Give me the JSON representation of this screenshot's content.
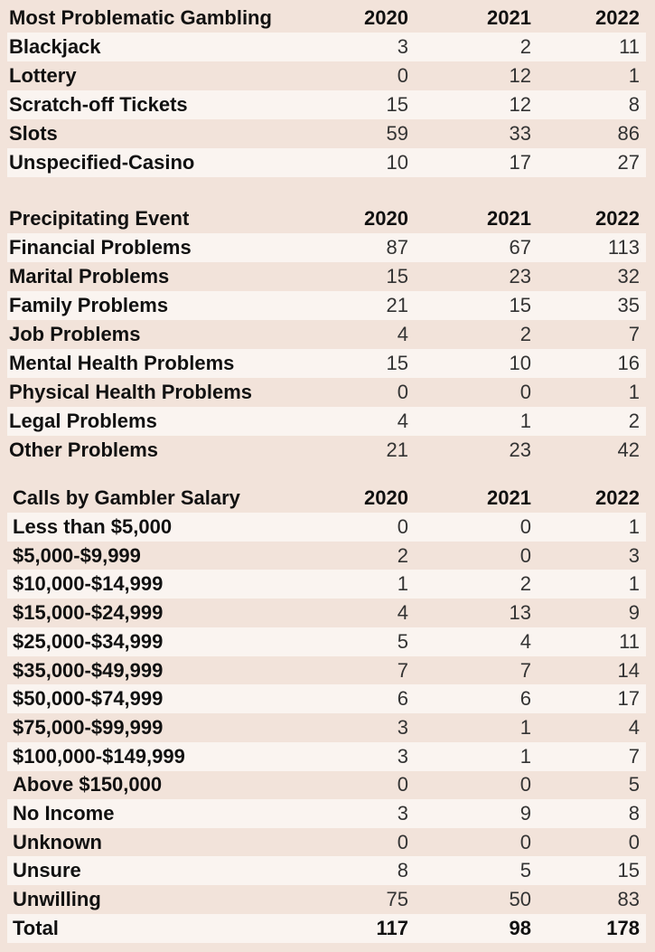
{
  "tables": [
    {
      "header": [
        "Most Problematic Gambling",
        "2020",
        "2021",
        "2022"
      ],
      "rows": [
        [
          "Blackjack",
          3,
          2,
          11
        ],
        [
          "Lottery",
          0,
          12,
          1
        ],
        [
          "Scratch-off Tickets",
          15,
          12,
          8
        ],
        [
          "Slots",
          59,
          33,
          86
        ],
        [
          "Unspecified-Casino",
          10,
          17,
          27
        ]
      ]
    },
    {
      "header": [
        "Precipitating Event",
        "2020",
        "2021",
        "2022"
      ],
      "rows": [
        [
          "Financial Problems",
          87,
          67,
          113
        ],
        [
          "Marital Problems",
          15,
          23,
          32
        ],
        [
          "Family Problems",
          21,
          15,
          35
        ],
        [
          "Job Problems",
          4,
          2,
          7
        ],
        [
          "Mental Health Problems",
          15,
          10,
          16
        ],
        [
          "Physical Health Problems",
          0,
          0,
          1
        ],
        [
          "Legal Problems",
          4,
          1,
          2
        ],
        [
          "Other Problems",
          21,
          23,
          42
        ]
      ]
    },
    {
      "header": [
        "Calls by Gambler Salary",
        "2020",
        "2021",
        "2022"
      ],
      "rows": [
        [
          "Less than $5,000",
          0,
          0,
          1
        ],
        [
          "$5,000-$9,999",
          2,
          0,
          3
        ],
        [
          "$10,000-$14,999",
          1,
          2,
          1
        ],
        [
          "$15,000-$24,999",
          4,
          13,
          9
        ],
        [
          "$25,000-$34,999",
          5,
          4,
          11
        ],
        [
          "$35,000-$49,999",
          7,
          7,
          14
        ],
        [
          "$50,000-$74,999",
          6,
          6,
          17
        ],
        [
          "$75,000-$99,999",
          3,
          1,
          4
        ],
        [
          "$100,000-$149,999",
          3,
          1,
          7
        ],
        [
          "Above $150,000",
          0,
          0,
          5
        ],
        [
          "No Income",
          3,
          9,
          8
        ],
        [
          "Unknown",
          0,
          0,
          0
        ],
        [
          "Unsure",
          8,
          5,
          15
        ],
        [
          "Unwilling",
          75,
          50,
          83
        ],
        [
          "Total",
          117,
          98,
          178
        ]
      ]
    }
  ]
}
